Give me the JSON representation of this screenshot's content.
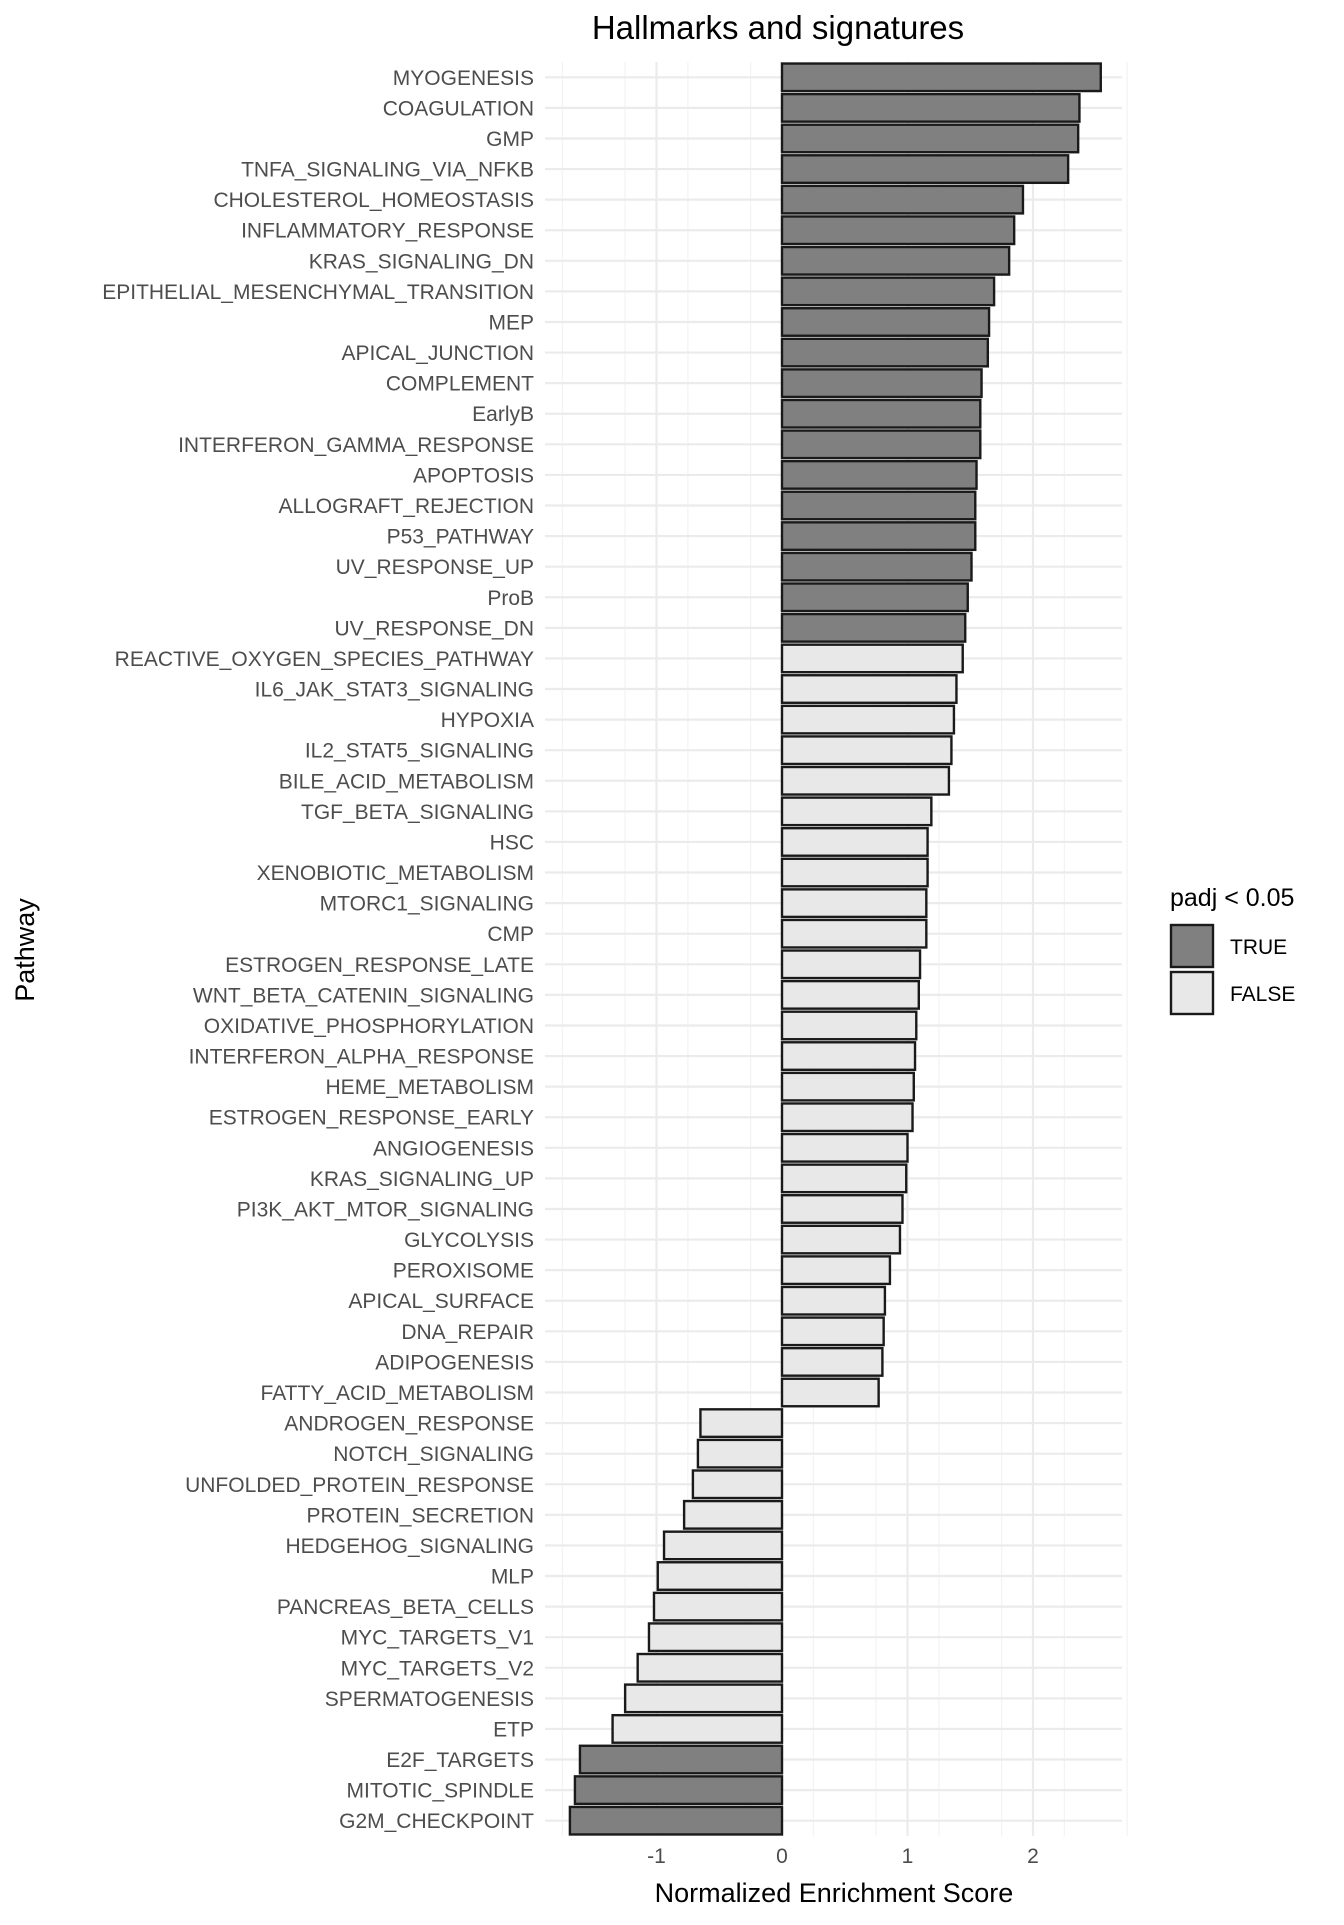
{
  "chart_data": {
    "type": "bar",
    "orientation": "horizontal",
    "title": "Hallmarks and signatures",
    "xlabel": "Normalized Enrichment Score",
    "ylabel": "Pathway",
    "xlim": [
      -1.75,
      2.75
    ],
    "xticks": [
      -1,
      0,
      1,
      2
    ],
    "xtick_labels": [
      "-1",
      "0",
      "1",
      "2"
    ],
    "grid": true,
    "legend": {
      "title": "padj < 0.05",
      "position": "right",
      "entries": [
        {
          "label": "TRUE",
          "color": "#808080"
        },
        {
          "label": "FALSE",
          "color": "#e8e8e8"
        }
      ]
    },
    "colors": {
      "TRUE": "#808080",
      "FALSE": "#e8e8e8",
      "outline": "#1a1a1a"
    },
    "categories": [
      "MYOGENESIS",
      "COAGULATION",
      "GMP",
      "TNFA_SIGNALING_VIA_NFKB",
      "CHOLESTEROL_HOMEOSTASIS",
      "INFLAMMATORY_RESPONSE",
      "KRAS_SIGNALING_DN",
      "EPITHELIAL_MESENCHYMAL_TRANSITION",
      "MEP",
      "APICAL_JUNCTION",
      "COMPLEMENT",
      "EarlyB",
      "INTERFERON_GAMMA_RESPONSE",
      "APOPTOSIS",
      "ALLOGRAFT_REJECTION",
      "P53_PATHWAY",
      "UV_RESPONSE_UP",
      "ProB",
      "UV_RESPONSE_DN",
      "REACTIVE_OXYGEN_SPECIES_PATHWAY",
      "IL6_JAK_STAT3_SIGNALING",
      "HYPOXIA",
      "IL2_STAT5_SIGNALING",
      "BILE_ACID_METABOLISM",
      "TGF_BETA_SIGNALING",
      "HSC",
      "XENOBIOTIC_METABOLISM",
      "MTORC1_SIGNALING",
      "CMP",
      "ESTROGEN_RESPONSE_LATE",
      "WNT_BETA_CATENIN_SIGNALING",
      "OXIDATIVE_PHOSPHORYLATION",
      "INTERFERON_ALPHA_RESPONSE",
      "HEME_METABOLISM",
      "ESTROGEN_RESPONSE_EARLY",
      "ANGIOGENESIS",
      "KRAS_SIGNALING_UP",
      "PI3K_AKT_MTOR_SIGNALING",
      "GLYCOLYSIS",
      "PEROXISOME",
      "APICAL_SURFACE",
      "DNA_REPAIR",
      "ADIPOGENESIS",
      "FATTY_ACID_METABOLISM",
      "ANDROGEN_RESPONSE",
      "NOTCH_SIGNALING",
      "UNFOLDED_PROTEIN_RESPONSE",
      "PROTEIN_SECRETION",
      "HEDGEHOG_SIGNALING",
      "MLP",
      "PANCREAS_BETA_CELLS",
      "MYC_TARGETS_V1",
      "MYC_TARGETS_V2",
      "SPERMATOGENESIS",
      "ETP",
      "E2F_TARGETS",
      "MITOTIC_SPINDLE",
      "G2M_CHECKPOINT"
    ],
    "values": [
      2.54,
      2.37,
      2.36,
      2.28,
      1.92,
      1.85,
      1.81,
      1.69,
      1.65,
      1.64,
      1.59,
      1.58,
      1.58,
      1.55,
      1.54,
      1.54,
      1.51,
      1.48,
      1.46,
      1.44,
      1.39,
      1.37,
      1.35,
      1.33,
      1.19,
      1.16,
      1.16,
      1.15,
      1.15,
      1.1,
      1.09,
      1.07,
      1.06,
      1.05,
      1.04,
      1.0,
      0.99,
      0.96,
      0.94,
      0.86,
      0.82,
      0.81,
      0.8,
      0.77,
      -0.65,
      -0.67,
      -0.71,
      -0.78,
      -0.94,
      -0.99,
      -1.02,
      -1.06,
      -1.15,
      -1.25,
      -1.35,
      -1.61,
      -1.65,
      -1.69
    ],
    "padj_significant": [
      true,
      true,
      true,
      true,
      true,
      true,
      true,
      true,
      true,
      true,
      true,
      true,
      true,
      true,
      true,
      true,
      true,
      true,
      true,
      false,
      false,
      false,
      false,
      false,
      false,
      false,
      false,
      false,
      false,
      false,
      false,
      false,
      false,
      false,
      false,
      false,
      false,
      false,
      false,
      false,
      false,
      false,
      false,
      false,
      false,
      false,
      false,
      false,
      false,
      false,
      false,
      false,
      false,
      false,
      false,
      true,
      true,
      true
    ]
  }
}
